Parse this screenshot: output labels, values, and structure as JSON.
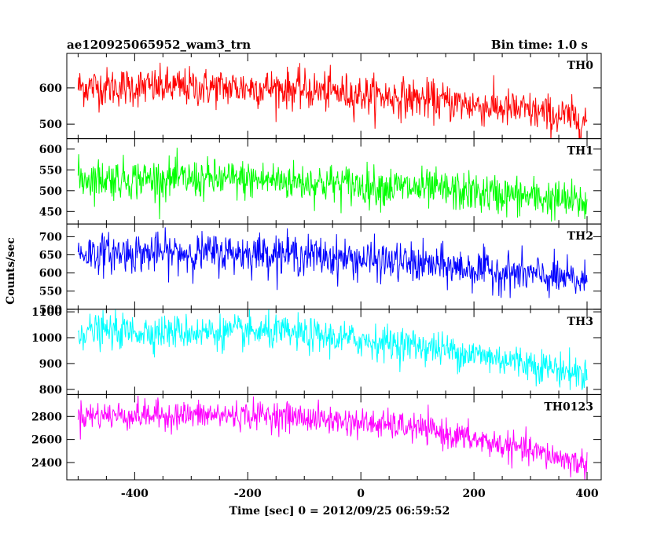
{
  "chart_data": {
    "type": "line",
    "title": "ae120925065952_wam3_trn",
    "bin_time_label": "Bin time: 1.0 s",
    "xlabel": "Time [sec] 0 = 2012/09/25 06:59:52",
    "ylabel": "Counts/sec",
    "xlim": [
      -520,
      425
    ],
    "x_ticks": [
      -400,
      -200,
      0,
      200,
      400
    ],
    "x_step": 1,
    "grid": false,
    "panels": [
      {
        "name": "TH0",
        "color": "#ff0000",
        "ylim": [
          460,
          695
        ],
        "y_ticks": [
          500,
          600
        ],
        "trend": [
          {
            "x": -500,
            "y": 603
          },
          {
            "x": -150,
            "y": 600
          },
          {
            "x": 100,
            "y": 570
          },
          {
            "x": 300,
            "y": 535
          },
          {
            "x": 400,
            "y": 510
          }
        ],
        "noise": 27
      },
      {
        "name": "TH1",
        "color": "#00ff00",
        "ylim": [
          420,
          625
        ],
        "y_ticks": [
          450,
          500,
          550,
          600
        ],
        "trend": [
          {
            "x": -500,
            "y": 530
          },
          {
            "x": -150,
            "y": 525
          },
          {
            "x": 100,
            "y": 505
          },
          {
            "x": 300,
            "y": 485
          },
          {
            "x": 400,
            "y": 470
          }
        ],
        "noise": 24
      },
      {
        "name": "TH2",
        "color": "#0000ff",
        "ylim": [
          500,
          735
        ],
        "y_ticks": [
          500,
          550,
          600,
          650,
          700
        ],
        "trend": [
          {
            "x": -500,
            "y": 655
          },
          {
            "x": -150,
            "y": 655
          },
          {
            "x": 100,
            "y": 625
          },
          {
            "x": 300,
            "y": 595
          },
          {
            "x": 400,
            "y": 575
          }
        ],
        "noise": 27
      },
      {
        "name": "TH3",
        "color": "#00ffff",
        "ylim": [
          780,
          1110
        ],
        "y_ticks": [
          800,
          900,
          1000,
          1100
        ],
        "trend": [
          {
            "x": -500,
            "y": 1025
          },
          {
            "x": -150,
            "y": 1020
          },
          {
            "x": 100,
            "y": 970
          },
          {
            "x": 300,
            "y": 900
          },
          {
            "x": 400,
            "y": 855
          }
        ],
        "noise": 33
      },
      {
        "name": "TH0123",
        "color": "#ff00ff",
        "ylim": [
          2250,
          2990
        ],
        "y_ticks": [
          2400,
          2600,
          2800
        ],
        "trend": [
          {
            "x": -500,
            "y": 2810
          },
          {
            "x": -150,
            "y": 2810
          },
          {
            "x": 100,
            "y": 2700
          },
          {
            "x": 300,
            "y": 2500
          },
          {
            "x": 400,
            "y": 2380
          }
        ],
        "noise": 62
      }
    ]
  }
}
